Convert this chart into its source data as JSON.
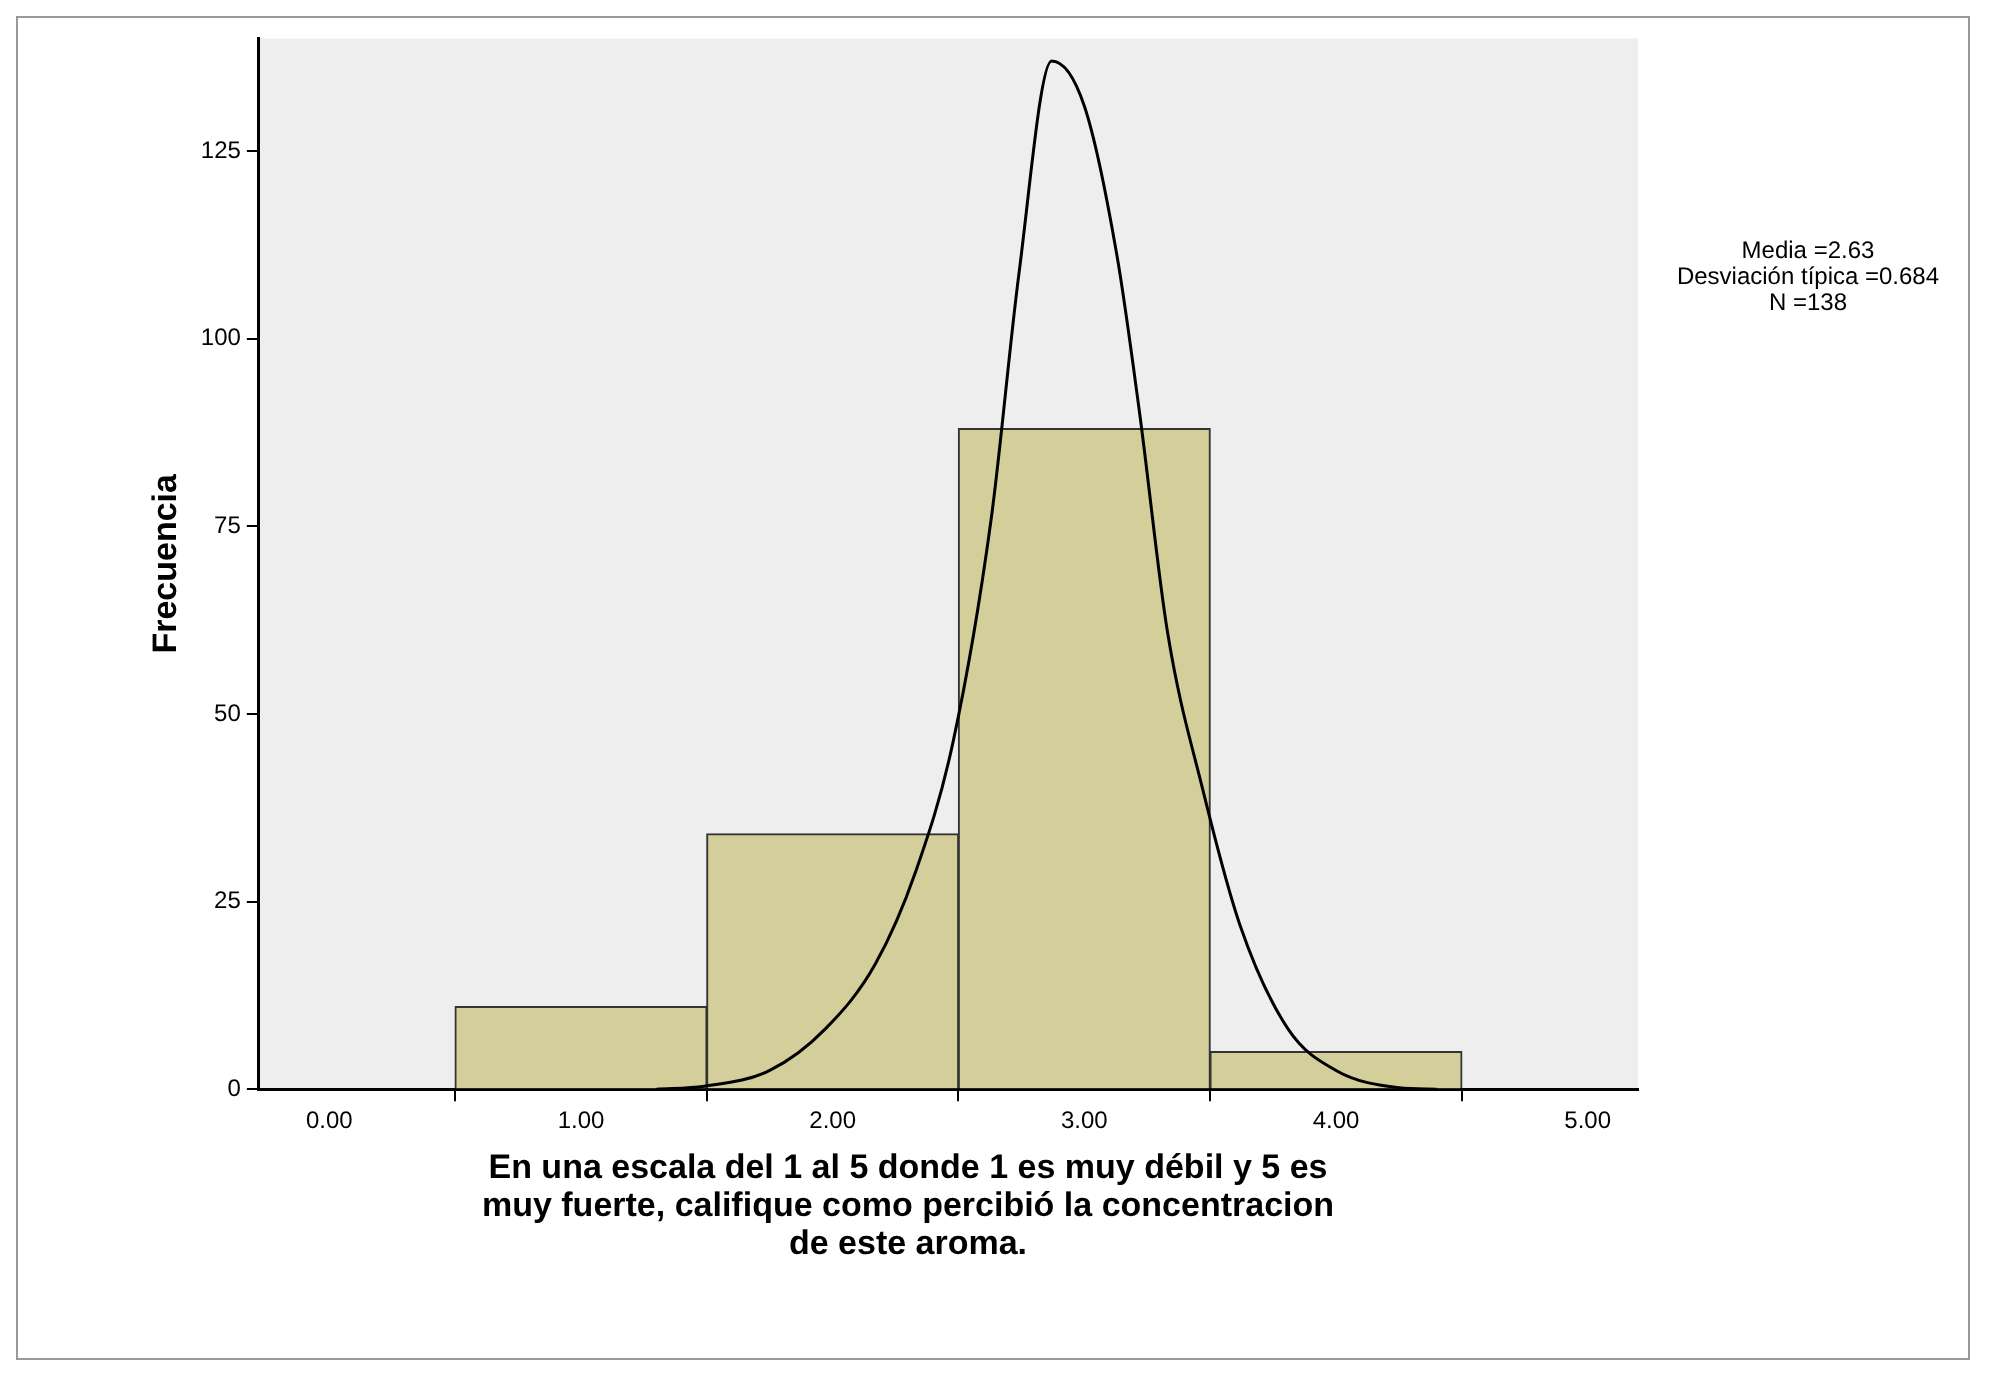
{
  "chart_data": {
    "type": "histogram",
    "xlabel": "En una escala del 1 al 5 donde 1 es muy débil y 5 es muy fuerte, califique como percibió la concentracion de este aroma.",
    "ylabel": "Frecuencia",
    "bins": [
      0.5,
      1.5,
      2.5,
      3.5,
      4.5
    ],
    "values": [
      11,
      34,
      88,
      5
    ],
    "color": "#d3ce9a",
    "series": [
      {
        "type": "line",
        "color": "#000000",
        "x": [
          1.3,
          1.49,
          1.75,
          1.97,
          2.17,
          2.33,
          2.48,
          2.63,
          2.74,
          2.87,
          3.0,
          3.13,
          3.22,
          3.33,
          3.47,
          3.62,
          3.81,
          4.0,
          4.25,
          4.4
        ],
        "values": [
          0,
          0.4,
          2.5,
          8,
          16.7,
          29,
          46.5,
          76,
          108.6,
          137,
          131,
          111,
          90,
          61,
          40,
          21.7,
          8,
          2.5,
          0.2,
          0
        ]
      }
    ],
    "xlim": [
      -0.28,
      5.2
    ],
    "xticks": [
      {
        "value": 0,
        "label": "0.00"
      },
      {
        "value": 1,
        "label": "1.00"
      },
      {
        "value": 2,
        "label": "2.00"
      },
      {
        "value": 3,
        "label": "3.00"
      },
      {
        "value": 4,
        "label": "4.00"
      },
      {
        "value": 5,
        "label": "5.00"
      }
    ],
    "ylim": [
      0,
      140
    ],
    "yticks": [
      0,
      25,
      50,
      75,
      100,
      125
    ],
    "grid": false,
    "annotations": [
      "Media =2.63",
      "Desviación típica =0.684",
      "N =138"
    ]
  }
}
